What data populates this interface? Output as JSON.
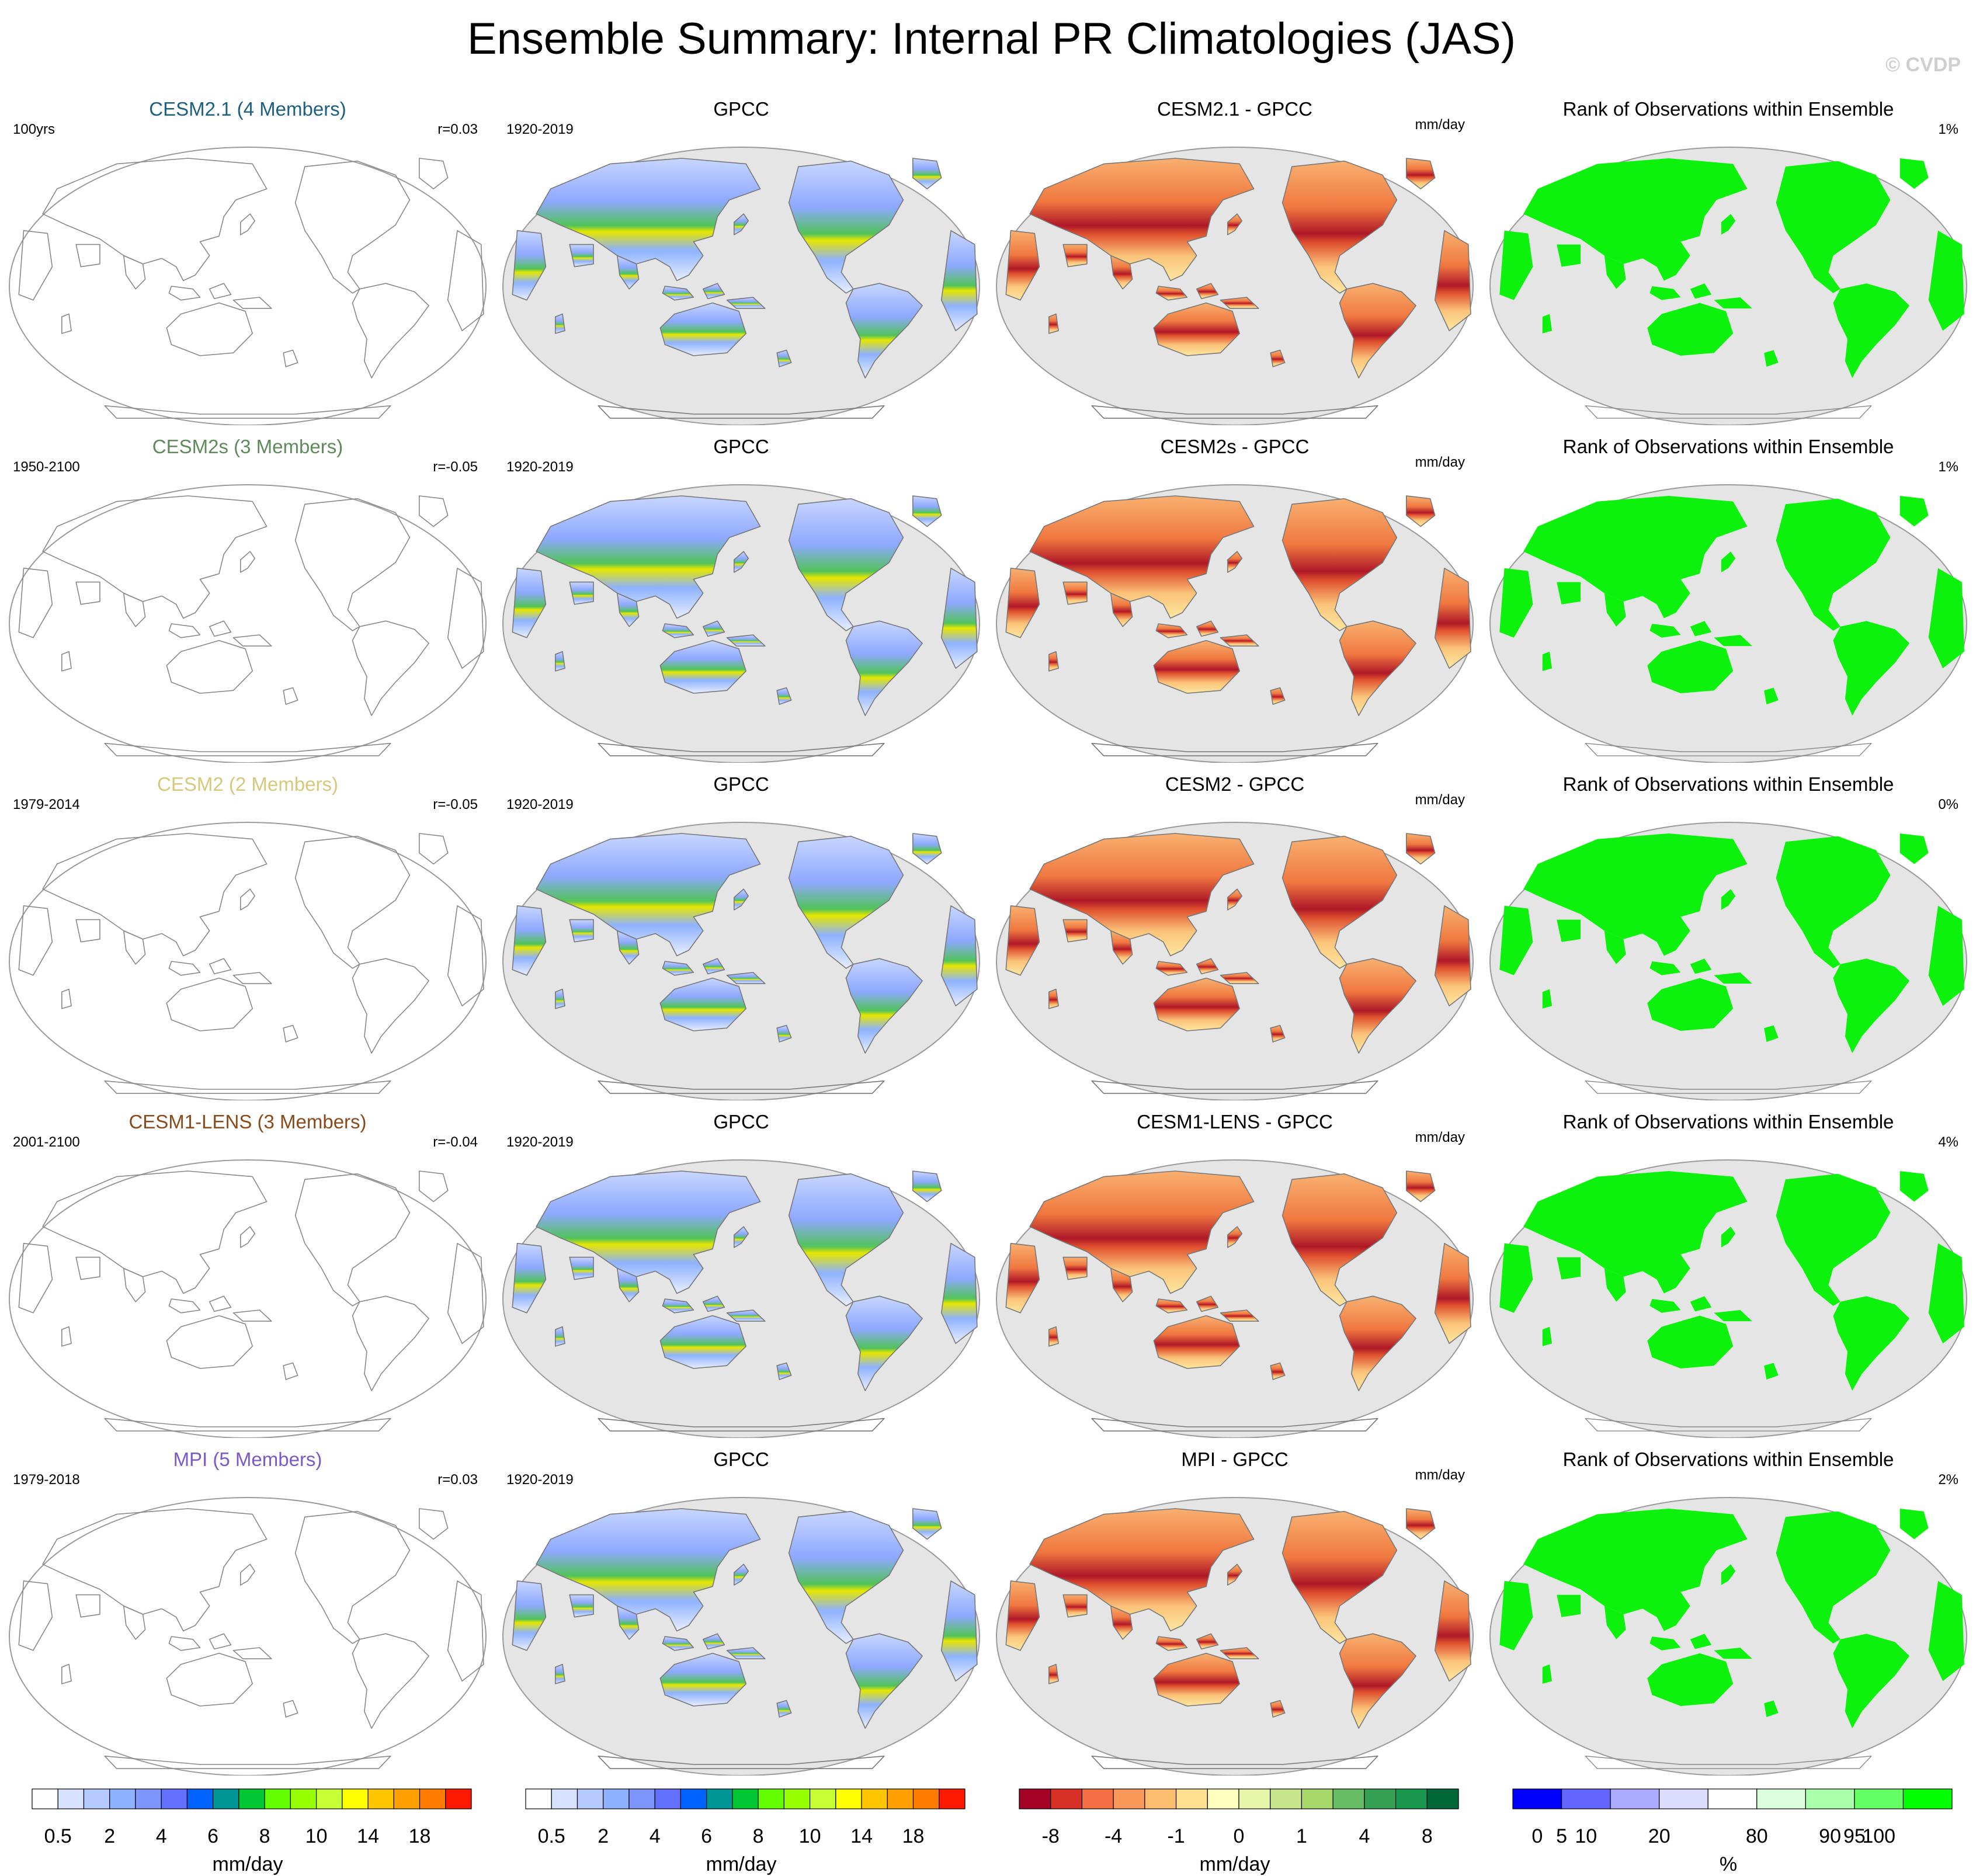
{
  "title": "Ensemble Summary: Internal PR Climatologies (JAS)",
  "copyright": "© CVDP",
  "colors": {
    "ocean": "#e5e5e5",
    "coast": "#777777",
    "rank_land": "#0cf20c"
  },
  "chart_data": {
    "type": "map-panel-grid",
    "units_label": "mm/day",
    "rank_title": "Rank of Observations within Ensemble",
    "rows": [
      {
        "model": "CESM2.1 (4 Members)",
        "model_color": "#1c5f80",
        "period": "100yrs",
        "r": "r=0.03",
        "obs": "GPCC",
        "obs_period": "1920-2019",
        "diff": "CESM2.1 - GPCC",
        "diff_units": "mm/day",
        "rank": "Rank of Observations within Ensemble",
        "rank_pct": "1%"
      },
      {
        "model": "CESM2s (3 Members)",
        "model_color": "#5f8a5a",
        "period": "1950-2100",
        "r": "r=-0.05",
        "obs": "GPCC",
        "obs_period": "1920-2019",
        "diff": "CESM2s - GPCC",
        "diff_units": "mm/day",
        "rank": "Rank of Observations within Ensemble",
        "rank_pct": "1%"
      },
      {
        "model": "CESM2 (2 Members)",
        "model_color": "#d8c87c",
        "period": "1979-2014",
        "r": "r=-0.05",
        "obs": "GPCC",
        "obs_period": "1920-2019",
        "diff": "CESM2 - GPCC",
        "diff_units": "mm/day",
        "rank": "Rank of Observations within Ensemble",
        "rank_pct": "0%"
      },
      {
        "model": "CESM1-LENS (3 Members)",
        "model_color": "#8a4a1a",
        "period": "2001-2100",
        "r": "r=-0.04",
        "obs": "GPCC",
        "obs_period": "1920-2019",
        "diff": "CESM1-LENS - GPCC",
        "diff_units": "mm/day",
        "rank": "Rank of Observations within Ensemble",
        "rank_pct": "4%"
      },
      {
        "model": "MPI (5 Members)",
        "model_color": "#7a5ac8",
        "period": "1979-2018",
        "r": "r=0.03",
        "obs": "GPCC",
        "obs_period": "1920-2019",
        "diff": "MPI - GPCC",
        "diff_units": "mm/day",
        "rank": "Rank of Observations within Ensemble",
        "rank_pct": "2%"
      }
    ],
    "colorbars": [
      {
        "name": "model-climatology",
        "colors": [
          "#ffffff",
          "#d6e2ff",
          "#b5c9ff",
          "#8eb2ff",
          "#7f96ff",
          "#6370ff",
          "#0063ff",
          "#009696",
          "#00c633",
          "#63ff00",
          "#96ff00",
          "#c6ff33",
          "#ffff00",
          "#ffc600",
          "#ffa000",
          "#ff7c00",
          "#ff1900"
        ],
        "tick_labels": [
          "0.5",
          "2",
          "4",
          "6",
          "8",
          "10",
          "14",
          "18"
        ],
        "tick_after_box": [
          1,
          3,
          5,
          7,
          9,
          11,
          13,
          15
        ],
        "label": "mm/day"
      },
      {
        "name": "obs-climatology",
        "colors": [
          "#ffffff",
          "#d6e2ff",
          "#b5c9ff",
          "#8eb2ff",
          "#7f96ff",
          "#6370ff",
          "#0063ff",
          "#009696",
          "#00c633",
          "#63ff00",
          "#96ff00",
          "#c6ff33",
          "#ffff00",
          "#ffc600",
          "#ffa000",
          "#ff7c00",
          "#ff1900"
        ],
        "tick_labels": [
          "0.5",
          "2",
          "4",
          "6",
          "8",
          "10",
          "14",
          "18"
        ],
        "tick_after_box": [
          1,
          3,
          5,
          7,
          9,
          11,
          13,
          15
        ],
        "label": "mm/day"
      },
      {
        "name": "difference",
        "colors": [
          "#a50026",
          "#d73027",
          "#f46d43",
          "#f99858",
          "#fdbe70",
          "#fee090",
          "#ffffbf",
          "#e6f5a8",
          "#c8e68c",
          "#a6d96a",
          "#66bd63",
          "#37a055",
          "#1a9850",
          "#006837"
        ],
        "tick_labels": [
          "-8",
          "-4",
          "-1",
          "0",
          "1",
          "4",
          "8"
        ],
        "tick_after_box": [
          1,
          3,
          5,
          7,
          9,
          11,
          13
        ],
        "label": "mm/day"
      },
      {
        "name": "rank",
        "colors": [
          "#0000ff",
          "#6464ff",
          "#aaaaff",
          "#dcdcff",
          "#ffffff",
          "#dcffdc",
          "#aaffaa",
          "#64ff64",
          "#00ff00"
        ],
        "tick_labels": [
          "0",
          "5",
          "10",
          "20",
          "80",
          "90",
          "95",
          "100"
        ],
        "tick_positions": [
          0.5,
          1,
          1.5,
          3,
          5,
          6.5,
          7,
          7.5
        ],
        "label": "%"
      }
    ]
  }
}
